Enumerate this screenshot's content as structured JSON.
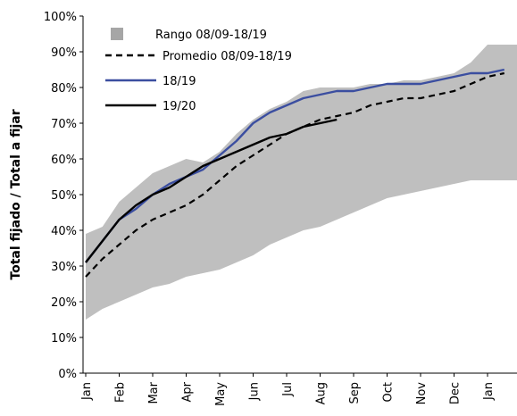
{
  "chart_data": {
    "type": "line",
    "y_label": "Total fijado / Total a fijar",
    "categories": [
      "Jan",
      null,
      "Feb",
      null,
      "Mar",
      null,
      "Apr",
      null,
      "May",
      null,
      "Jun",
      null,
      "Jul",
      null,
      "Aug",
      null,
      "Sep",
      null,
      "Oct",
      null,
      "Nov",
      null,
      "Dec",
      null,
      "Jan",
      null
    ],
    "ylim": [
      0,
      100
    ],
    "yticks": [
      {
        "value": 0,
        "label": "0%"
      },
      {
        "value": 10,
        "label": "10%"
      },
      {
        "value": 20,
        "label": "20%"
      },
      {
        "value": 30,
        "label": "30%"
      },
      {
        "value": 40,
        "label": "40%"
      },
      {
        "value": 50,
        "label": "50%"
      },
      {
        "value": 60,
        "label": "60%"
      },
      {
        "value": 70,
        "label": "70%"
      },
      {
        "value": 80,
        "label": "80%"
      },
      {
        "value": 90,
        "label": "90%"
      },
      {
        "value": 100,
        "label": "100%"
      }
    ],
    "legend": "upper-left",
    "series": [
      {
        "name": "Rango 08/09-18/19",
        "color": "#bfbfbf",
        "lower": [
          15,
          18,
          20,
          22,
          24,
          25,
          27,
          28,
          29,
          31,
          33,
          36,
          38,
          40,
          41,
          43,
          45,
          47,
          49,
          50,
          51,
          52,
          53,
          54,
          54,
          54
        ],
        "upper": [
          39,
          41,
          48,
          52,
          56,
          58,
          60,
          59,
          62,
          67,
          71,
          74,
          76,
          79,
          80,
          80,
          80,
          81,
          81,
          82,
          82,
          83,
          84,
          87,
          92,
          92
        ]
      },
      {
        "name": "Promedio 08/09-18/19",
        "color": "#000000",
        "dashed": true,
        "values": [
          27,
          32,
          36,
          40,
          43,
          45,
          47,
          50,
          54,
          58,
          61,
          64,
          67,
          69,
          71,
          72,
          73,
          75,
          76,
          77,
          77,
          78,
          79,
          81,
          83,
          84
        ]
      },
      {
        "name": "18/19",
        "color": "#3b4ea0",
        "dashed": false,
        "values": [
          31,
          37,
          43,
          46,
          50,
          53,
          55,
          57,
          61,
          65,
          70,
          73,
          75,
          77,
          78,
          79,
          79,
          80,
          81,
          81,
          81,
          82,
          83,
          84,
          84,
          85
        ]
      },
      {
        "name": "19/20",
        "color": "#000000",
        "dashed": false,
        "values": [
          31,
          37,
          43,
          47,
          50,
          52,
          55,
          58,
          60,
          62,
          64,
          66,
          67,
          69,
          70,
          71,
          null,
          null,
          null,
          null,
          null,
          null,
          null,
          null,
          null,
          null
        ]
      }
    ]
  }
}
